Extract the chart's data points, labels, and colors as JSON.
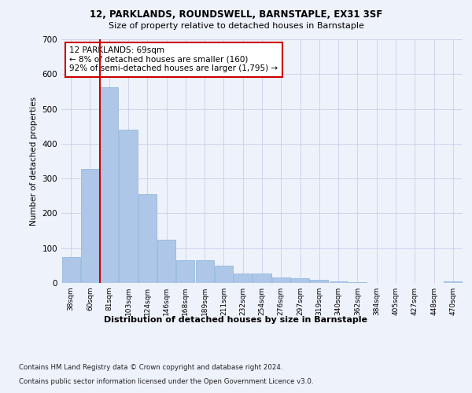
{
  "title1_actual": "12, PARKLANDS, ROUNDSWELL, BARNSTAPLE, EX31 3SF",
  "title2": "Size of property relative to detached houses in Barnstaple",
  "xlabel": "Distribution of detached houses by size in Barnstaple",
  "ylabel": "Number of detached properties",
  "categories": [
    "38sqm",
    "60sqm",
    "81sqm",
    "103sqm",
    "124sqm",
    "146sqm",
    "168sqm",
    "189sqm",
    "211sqm",
    "232sqm",
    "254sqm",
    "276sqm",
    "297sqm",
    "319sqm",
    "340sqm",
    "362sqm",
    "384sqm",
    "405sqm",
    "427sqm",
    "448sqm",
    "470sqm"
  ],
  "values": [
    75,
    328,
    563,
    440,
    255,
    125,
    65,
    65,
    50,
    28,
    28,
    15,
    13,
    10,
    5,
    3,
    1,
    0,
    0,
    0,
    5
  ],
  "bar_color": "#aec6e8",
  "bar_edge_color": "#8ab4d8",
  "annotation_text": "12 PARKLANDS: 69sqm\n← 8% of detached houses are smaller (160)\n92% of semi-detached houses are larger (1,795) →",
  "annotation_box_color": "#ffffff",
  "annotation_box_edge": "#cc0000",
  "footer1": "Contains HM Land Registry data © Crown copyright and database right 2024.",
  "footer2": "Contains public sector information licensed under the Open Government Licence v3.0.",
  "bg_color": "#eef2fb",
  "plot_bg_color": "#eef2fb",
  "ylim": [
    0,
    700
  ],
  "yticks": [
    0,
    100,
    200,
    300,
    400,
    500,
    600,
    700
  ],
  "grid_color": "#c8d0e8",
  "red_line_color": "#cc0000",
  "red_line_x": 1.5
}
